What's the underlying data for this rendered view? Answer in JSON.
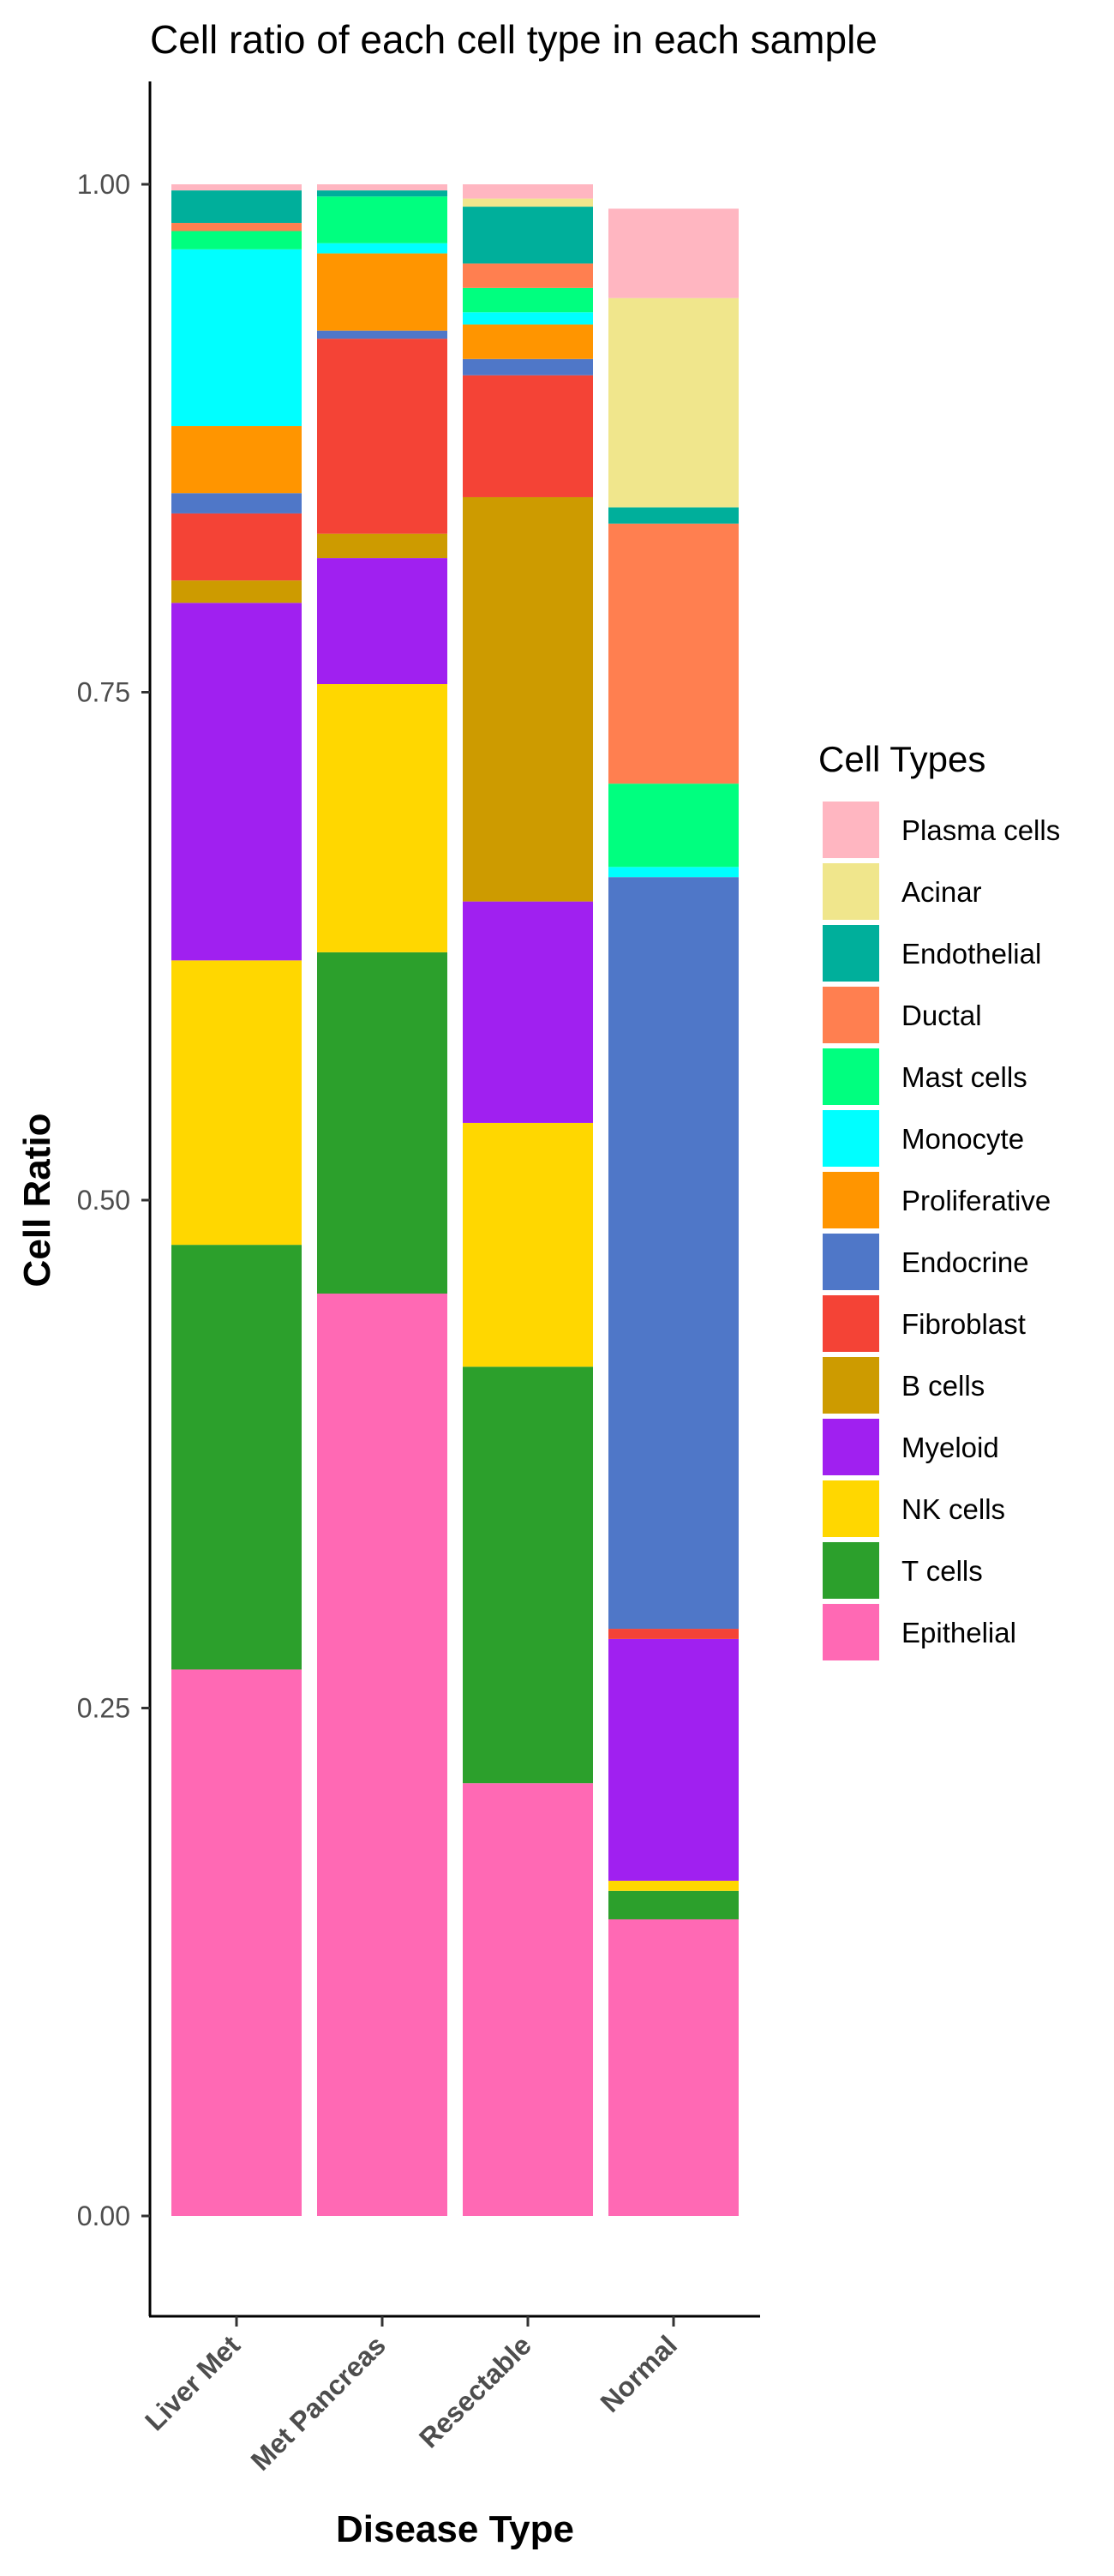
{
  "chart_data": {
    "type": "bar",
    "stacked": true,
    "title": "Cell ratio of each cell type in each sample",
    "xlabel": "Disease Type",
    "ylabel": "Cell Ratio",
    "ylim": [
      0,
      1
    ],
    "yticks": [
      "0.00",
      "0.25",
      "0.50",
      "0.75",
      "1.00"
    ],
    "categories": [
      "Liver Met",
      "Met Pancreas",
      "Resectable",
      "Normal"
    ],
    "legend": {
      "title": "Cell Types",
      "position": "right"
    },
    "grid": false,
    "series": [
      {
        "name": "Epithelial",
        "color": "#FF69B4",
        "values": [
          0.269,
          0.454,
          0.213,
          0.146
        ]
      },
      {
        "name": "T cells",
        "color": "#2CA02C",
        "values": [
          0.209,
          0.168,
          0.205,
          0.014
        ]
      },
      {
        "name": "NK cells",
        "color": "#FFD700",
        "values": [
          0.14,
          0.132,
          0.12,
          0.005
        ]
      },
      {
        "name": "Myeloid",
        "color": "#A020F0",
        "values": [
          0.176,
          0.062,
          0.109,
          0.119
        ]
      },
      {
        "name": "B cells",
        "color": "#CD9B00",
        "values": [
          0.011,
          0.012,
          0.199,
          0.0
        ]
      },
      {
        "name": "Fibroblast",
        "color": "#F44336",
        "values": [
          0.033,
          0.096,
          0.06,
          0.005
        ]
      },
      {
        "name": "Endocrine",
        "color": "#4F77C8",
        "values": [
          0.01,
          0.004,
          0.008,
          0.37
        ]
      },
      {
        "name": "Proliferative",
        "color": "#FF9500",
        "values": [
          0.033,
          0.038,
          0.017,
          0.0
        ]
      },
      {
        "name": "Monocyte",
        "color": "#00FFFF",
        "values": [
          0.087,
          0.005,
          0.006,
          0.005
        ]
      },
      {
        "name": "Mast cells",
        "color": "#00FF7F",
        "values": [
          0.009,
          0.023,
          0.012,
          0.041
        ]
      },
      {
        "name": "Ductal",
        "color": "#FF7F50",
        "values": [
          0.004,
          0.0,
          0.012,
          0.128
        ]
      },
      {
        "name": "Endothelial",
        "color": "#00AF9B",
        "values": [
          0.016,
          0.003,
          0.028,
          0.008
        ]
      },
      {
        "name": "Acinar",
        "color": "#F0E68C",
        "values": [
          0.0,
          0.0,
          0.004,
          0.103
        ]
      },
      {
        "name": "Plasma cells",
        "color": "#FFB6C1",
        "values": [
          0.003,
          0.003,
          0.007,
          0.044
        ]
      }
    ]
  }
}
